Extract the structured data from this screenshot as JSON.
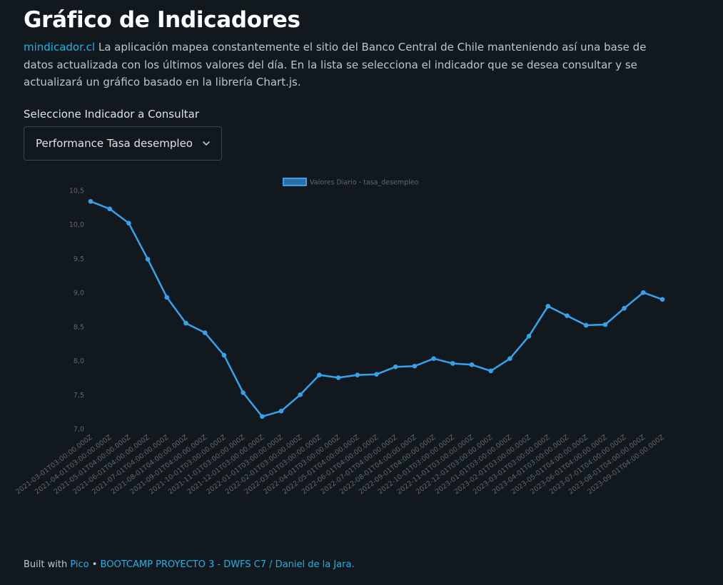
{
  "header": {
    "title": "Gráfico de Indicadores"
  },
  "intro": {
    "link_text": "mindicador.cl",
    "text": " La aplicación mapea constantemente el sitio del Banco Central de Chile manteniendo así una base de datos actualizada con los últimos valores del día. En la lista se selecciona el indicador que se desea consultar y se actualizará un gráfico basado en la librería Chart.js."
  },
  "selector": {
    "label": "Seleccione Indicador a Consultar",
    "selected": "Performance Tasa desempleo",
    "chevron_icon": "chevron-down-icon"
  },
  "chart_data": {
    "type": "line",
    "legend": "Valores Diario - tasa_desempleo",
    "legend_position": "top-center",
    "color": "#36a2eb",
    "grid": false,
    "ylim": [
      7.0,
      10.5
    ],
    "yticks": [
      "10,5",
      "10,0",
      "9,5",
      "9,0",
      "8,5",
      "8,0",
      "7,5",
      "7,0"
    ],
    "x": [
      "2021-03-01T03:00:00.000Z",
      "2021-04-01T03:00:00.000Z",
      "2021-05-01T04:00:00.000Z",
      "2021-06-01T04:00:00.000Z",
      "2021-07-01T04:00:00.000Z",
      "2021-08-01T04:00:00.000Z",
      "2021-09-01T04:00:00.000Z",
      "2021-10-01T03:00:00.000Z",
      "2021-11-01T03:00:00.000Z",
      "2021-12-01T03:00:00.000Z",
      "2022-01-01T03:00:00.000Z",
      "2022-02-01T03:00:00.000Z",
      "2022-03-01T03:00:00.000Z",
      "2022-04-01T03:00:00.000Z",
      "2022-05-01T04:00:00.000Z",
      "2022-06-01T04:00:00.000Z",
      "2022-07-01T04:00:00.000Z",
      "2022-08-01T04:00:00.000Z",
      "2022-09-01T04:00:00.000Z",
      "2022-10-01T03:00:00.000Z",
      "2022-11-01T03:00:00.000Z",
      "2022-12-01T03:00:00.000Z",
      "2023-01-01T03:00:00.000Z",
      "2023-02-01T03:00:00.000Z",
      "2023-03-01T03:00:00.000Z",
      "2023-04-01T03:00:00.000Z",
      "2023-05-01T04:00:00.000Z",
      "2023-06-01T04:00:00.000Z",
      "2023-07-01T04:00:00.000Z",
      "2023-08-01T04:00:00.000Z",
      "2023-09-01T04:00:00.000Z"
    ],
    "values": [
      10.34,
      10.23,
      10.02,
      9.49,
      8.93,
      8.55,
      8.41,
      8.08,
      7.53,
      7.18,
      7.26,
      7.5,
      7.79,
      7.75,
      7.79,
      7.8,
      7.91,
      7.92,
      8.03,
      7.96,
      7.94,
      7.85,
      8.03,
      8.36,
      8.8,
      8.66,
      8.52,
      8.53,
      8.77,
      9.0,
      8.9
    ]
  },
  "footer": {
    "built_with": "Built with ",
    "pico": "Pico",
    "separator": " • ",
    "credit": "BOOTCAMP PROYECTO 3 - DWFS C7 / Daniel de la Jara."
  }
}
